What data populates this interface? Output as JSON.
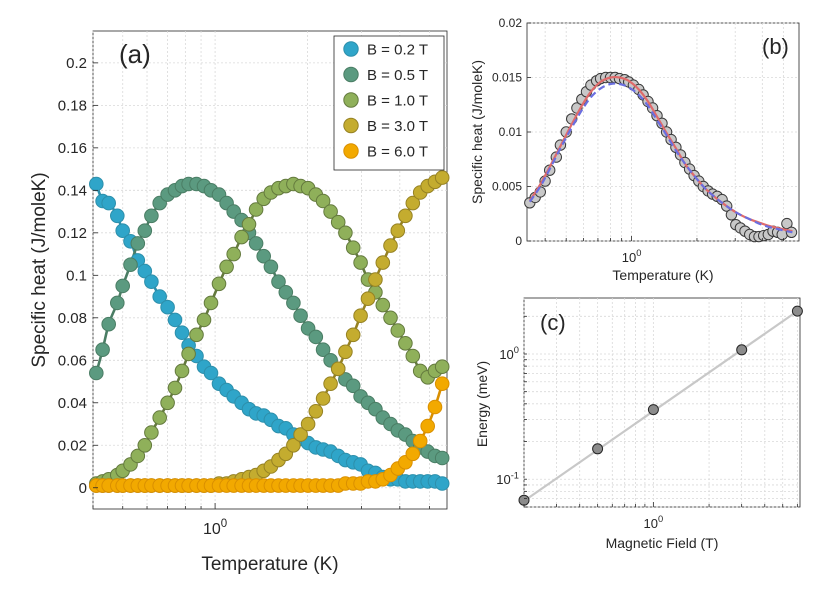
{
  "chart_data": [
    {
      "panel": "(a)",
      "type": "scatter",
      "xscale": "log",
      "xlim": [
        0.4,
        5.7
      ],
      "ylim": [
        -0.01,
        0.215
      ],
      "xlabel": "Temperature (K)",
      "ylabel": "Specific heat (J/moleK)",
      "xticks": [
        {
          "value": 1,
          "base": "10",
          "exp": "0"
        }
      ],
      "yticks": [
        0,
        0.02,
        0.04,
        0.06,
        0.08,
        0.1,
        0.12,
        0.14,
        0.16,
        0.18,
        0.2
      ],
      "legend_position": "top-right",
      "series": [
        {
          "name": "B = 0.2 T",
          "color": "#2fa5c9",
          "fit_color": "#2d8fab",
          "x": [
            0.41,
            0.43,
            0.45,
            0.48,
            0.5,
            0.53,
            0.56,
            0.59,
            0.62,
            0.66,
            0.7,
            0.74,
            0.78,
            0.82,
            0.87,
            0.92,
            0.97,
            1.03,
            1.09,
            1.15,
            1.22,
            1.29,
            1.36,
            1.44,
            1.52,
            1.61,
            1.7,
            1.8,
            1.9,
            2.01,
            2.13,
            2.25,
            2.38,
            2.52,
            2.66,
            2.82,
            2.98,
            3.15,
            3.33,
            3.52,
            3.73,
            3.94,
            4.17,
            4.41,
            4.66,
            4.93,
            5.21,
            5.5
          ],
          "y": [
            0.143,
            0.135,
            0.134,
            0.128,
            0.121,
            0.116,
            0.107,
            0.102,
            0.097,
            0.09,
            0.085,
            0.079,
            0.073,
            0.067,
            0.062,
            0.057,
            0.054,
            0.049,
            0.046,
            0.043,
            0.04,
            0.037,
            0.035,
            0.034,
            0.032,
            0.029,
            0.028,
            0.025,
            0.023,
            0.021,
            0.019,
            0.018,
            0.017,
            0.015,
            0.013,
            0.012,
            0.011,
            0.008,
            0.007,
            0.005,
            0.004,
            0.004,
            0.003,
            0.003,
            0.003,
            0.003,
            0.003,
            0.002
          ]
        },
        {
          "name": "B = 0.5 T",
          "color": "#5b9a80",
          "fit_color": "#4a7d64",
          "x": [
            0.41,
            0.43,
            0.45,
            0.48,
            0.5,
            0.53,
            0.56,
            0.59,
            0.62,
            0.66,
            0.7,
            0.74,
            0.78,
            0.82,
            0.87,
            0.92,
            0.97,
            1.03,
            1.09,
            1.15,
            1.22,
            1.29,
            1.36,
            1.44,
            1.52,
            1.61,
            1.7,
            1.8,
            1.9,
            2.01,
            2.13,
            2.25,
            2.38,
            2.52,
            2.66,
            2.82,
            2.98,
            3.15,
            3.33,
            3.52,
            3.73,
            3.94,
            4.17,
            4.41,
            4.66,
            4.93,
            5.21,
            5.5
          ],
          "y": [
            0.054,
            0.065,
            0.077,
            0.087,
            0.095,
            0.105,
            0.115,
            0.121,
            0.128,
            0.134,
            0.138,
            0.14,
            0.142,
            0.143,
            0.143,
            0.142,
            0.14,
            0.138,
            0.134,
            0.13,
            0.126,
            0.12,
            0.115,
            0.109,
            0.104,
            0.097,
            0.092,
            0.087,
            0.081,
            0.075,
            0.071,
            0.065,
            0.06,
            0.056,
            0.051,
            0.048,
            0.043,
            0.04,
            0.037,
            0.033,
            0.03,
            0.027,
            0.025,
            0.022,
            0.019,
            0.017,
            0.015,
            0.014
          ]
        },
        {
          "name": "B = 1.0 T",
          "color": "#8fb05a",
          "fit_color": "#647a3e",
          "x": [
            0.41,
            0.43,
            0.45,
            0.48,
            0.5,
            0.53,
            0.56,
            0.59,
            0.62,
            0.66,
            0.7,
            0.74,
            0.78,
            0.82,
            0.87,
            0.92,
            0.97,
            1.03,
            1.09,
            1.15,
            1.22,
            1.29,
            1.36,
            1.44,
            1.52,
            1.61,
            1.7,
            1.8,
            1.9,
            2.01,
            2.13,
            2.25,
            2.38,
            2.52,
            2.66,
            2.82,
            2.98,
            3.15,
            3.33,
            3.52,
            3.73,
            3.94,
            4.17,
            4.41,
            4.66,
            4.93,
            5.21,
            5.5
          ],
          "y": [
            0.002,
            0.003,
            0.004,
            0.006,
            0.008,
            0.011,
            0.015,
            0.02,
            0.026,
            0.033,
            0.04,
            0.047,
            0.055,
            0.063,
            0.072,
            0.079,
            0.087,
            0.096,
            0.104,
            0.11,
            0.118,
            0.124,
            0.131,
            0.136,
            0.139,
            0.141,
            0.142,
            0.143,
            0.142,
            0.141,
            0.138,
            0.135,
            0.13,
            0.125,
            0.12,
            0.113,
            0.106,
            0.098,
            0.092,
            0.086,
            0.08,
            0.074,
            0.068,
            0.062,
            0.055,
            0.052,
            0.055,
            0.057
          ]
        },
        {
          "name": "B = 3.0 T",
          "color": "#c4ac2f",
          "fit_color": "#968223",
          "x": [
            0.41,
            0.43,
            0.45,
            0.48,
            0.5,
            0.53,
            0.56,
            0.59,
            0.62,
            0.66,
            0.7,
            0.74,
            0.78,
            0.82,
            0.87,
            0.92,
            0.97,
            1.03,
            1.09,
            1.15,
            1.22,
            1.29,
            1.36,
            1.44,
            1.52,
            1.61,
            1.7,
            1.8,
            1.9,
            2.01,
            2.13,
            2.25,
            2.38,
            2.52,
            2.66,
            2.82,
            2.98,
            3.15,
            3.33,
            3.52,
            3.73,
            3.94,
            4.17,
            4.41,
            4.66,
            4.93,
            5.21,
            5.5
          ],
          "y": [
            0.001,
            0.001,
            0.001,
            0.001,
            0.001,
            0.001,
            0.001,
            0.001,
            0.001,
            0.001,
            0.001,
            0.001,
            0.001,
            0.001,
            0.001,
            0.001,
            0.001,
            0.002,
            0.002,
            0.003,
            0.004,
            0.005,
            0.006,
            0.008,
            0.01,
            0.013,
            0.016,
            0.02,
            0.025,
            0.03,
            0.036,
            0.042,
            0.049,
            0.056,
            0.064,
            0.072,
            0.081,
            0.089,
            0.098,
            0.106,
            0.114,
            0.121,
            0.128,
            0.134,
            0.139,
            0.142,
            0.144,
            0.146
          ]
        },
        {
          "name": "B = 6.0 T",
          "color": "#f2a900",
          "fit_color": "#d98f00",
          "x": [
            0.41,
            0.43,
            0.45,
            0.48,
            0.5,
            0.53,
            0.56,
            0.59,
            0.62,
            0.66,
            0.7,
            0.74,
            0.78,
            0.82,
            0.87,
            0.92,
            0.97,
            1.03,
            1.09,
            1.15,
            1.22,
            1.29,
            1.36,
            1.44,
            1.52,
            1.61,
            1.7,
            1.8,
            1.9,
            2.01,
            2.13,
            2.25,
            2.38,
            2.52,
            2.66,
            2.82,
            2.98,
            3.15,
            3.33,
            3.52,
            3.73,
            3.94,
            4.17,
            4.41,
            4.66,
            4.93,
            5.21,
            5.5
          ],
          "y": [
            0.001,
            0.001,
            0.001,
            0.001,
            0.001,
            0.001,
            0.001,
            0.001,
            0.001,
            0.001,
            0.001,
            0.001,
            0.001,
            0.001,
            0.001,
            0.001,
            0.001,
            0.001,
            0.001,
            0.001,
            0.001,
            0.001,
            0.001,
            0.001,
            0.001,
            0.001,
            0.001,
            0.001,
            0.001,
            0.001,
            0.001,
            0.001,
            0.001,
            0.001,
            0.002,
            0.002,
            0.002,
            0.003,
            0.003,
            0.004,
            0.006,
            0.009,
            0.012,
            0.016,
            0.022,
            0.029,
            0.038,
            0.049
          ]
        }
      ]
    },
    {
      "panel": "(b)",
      "type": "scatter",
      "xscale": "log",
      "xlim": [
        0.33,
        5.9
      ],
      "ylim": [
        0,
        0.02
      ],
      "xlabel": "Temperature (K)",
      "ylabel": "Specific heat (J/moleK)",
      "xticks": [
        {
          "value": 1,
          "base": "10",
          "exp": "0"
        }
      ],
      "yticks": [
        0,
        0.005,
        0.01,
        0.015,
        0.02
      ],
      "ytick_labels": [
        "0",
        "0.005",
        "0.01",
        "0.015",
        "0.02"
      ],
      "points": {
        "color": "#c8c8c8",
        "x": [
          0.34,
          0.36,
          0.38,
          0.4,
          0.42,
          0.45,
          0.47,
          0.5,
          0.53,
          0.56,
          0.59,
          0.62,
          0.65,
          0.69,
          0.72,
          0.76,
          0.8,
          0.84,
          0.88,
          0.93,
          0.97,
          1.02,
          1.08,
          1.13,
          1.19,
          1.25,
          1.31,
          1.38,
          1.45,
          1.52,
          1.6,
          1.68,
          1.76,
          1.85,
          1.94,
          2.04,
          2.14,
          2.25,
          2.36,
          2.48,
          2.61,
          2.74,
          2.88,
          3.02,
          3.17,
          3.33,
          3.5,
          3.68,
          3.86,
          4.06,
          4.26,
          4.48,
          4.7,
          4.94,
          5.19,
          5.45
        ],
        "y": [
          0.0035,
          0.004,
          0.0045,
          0.0055,
          0.0065,
          0.0077,
          0.0088,
          0.01,
          0.0112,
          0.0122,
          0.013,
          0.0137,
          0.0143,
          0.0147,
          0.0149,
          0.015,
          0.015,
          0.015,
          0.0149,
          0.0148,
          0.0146,
          0.0143,
          0.0139,
          0.0134,
          0.0128,
          0.0122,
          0.0115,
          0.0108,
          0.01,
          0.0093,
          0.0086,
          0.0079,
          0.0072,
          0.0066,
          0.006,
          0.0055,
          0.005,
          0.0046,
          0.0043,
          0.0041,
          0.0038,
          0.0032,
          0.0024,
          0.0015,
          0.0012,
          0.0009,
          0.0006,
          0.0004,
          0.0004,
          0.0005,
          0.0006,
          0.0009,
          0.0008,
          0.0006,
          0.0016,
          0.0008
        ]
      },
      "fits": [
        {
          "name": "fit-solid",
          "style": "solid",
          "color": "#e06b6b",
          "x": [
            0.34,
            0.38,
            0.42,
            0.47,
            0.53,
            0.59,
            0.65,
            0.72,
            0.8,
            0.88,
            0.97,
            1.08,
            1.19,
            1.31,
            1.45,
            1.6,
            1.76,
            1.94,
            2.14,
            2.36,
            2.61,
            2.88,
            3.17,
            3.5,
            3.86,
            4.26,
            4.7,
            5.19,
            5.5
          ],
          "y": [
            0.0037,
            0.0052,
            0.0068,
            0.0087,
            0.0107,
            0.0124,
            0.0137,
            0.0146,
            0.015,
            0.015,
            0.0147,
            0.0139,
            0.0128,
            0.0114,
            0.0099,
            0.0085,
            0.0071,
            0.006,
            0.005,
            0.0042,
            0.0035,
            0.0029,
            0.0024,
            0.002,
            0.0017,
            0.0014,
            0.0012,
            0.001,
            0.0009
          ]
        },
        {
          "name": "fit-dashed",
          "style": "dashed",
          "color": "#6b6fe0",
          "x": [
            0.34,
            0.38,
            0.42,
            0.47,
            0.53,
            0.59,
            0.65,
            0.72,
            0.8,
            0.88,
            0.97,
            1.08,
            1.19,
            1.31,
            1.45,
            1.6,
            1.76,
            1.94,
            2.14,
            2.36,
            2.61,
            2.88,
            3.17,
            3.5,
            3.86,
            4.26,
            4.7,
            5.19,
            5.5
          ],
          "y": [
            0.0036,
            0.005,
            0.0066,
            0.0085,
            0.0104,
            0.012,
            0.0132,
            0.014,
            0.0144,
            0.0144,
            0.0141,
            0.0134,
            0.0124,
            0.0111,
            0.0097,
            0.0083,
            0.0071,
            0.006,
            0.005,
            0.0042,
            0.0035,
            0.0029,
            0.0024,
            0.002,
            0.0016,
            0.0013,
            0.0011,
            0.0009,
            0.0008
          ]
        }
      ]
    },
    {
      "panel": "(c)",
      "type": "scatter",
      "xscale": "log",
      "yscale": "log",
      "xlim": [
        0.2,
        6.2
      ],
      "ylim": [
        0.06,
        2.8
      ],
      "xlabel": "Magnetic Field (T)",
      "ylabel": "Energy (meV)",
      "xticks": [
        {
          "value": 1,
          "base": "10",
          "exp": "0"
        }
      ],
      "yticks": [
        {
          "value": 0.1,
          "base": "10",
          "exp": "-1"
        },
        {
          "value": 1,
          "base": "10",
          "exp": "0"
        }
      ],
      "points": {
        "color": "#8c8c8c",
        "x": [
          0.2,
          0.5,
          1.0,
          3.0,
          6.0
        ],
        "y": [
          0.068,
          0.175,
          0.36,
          1.08,
          2.2
        ]
      },
      "fit": {
        "color": "#c8c8c8",
        "x": [
          0.2,
          6.0
        ],
        "y": [
          0.067,
          2.2
        ]
      }
    }
  ]
}
